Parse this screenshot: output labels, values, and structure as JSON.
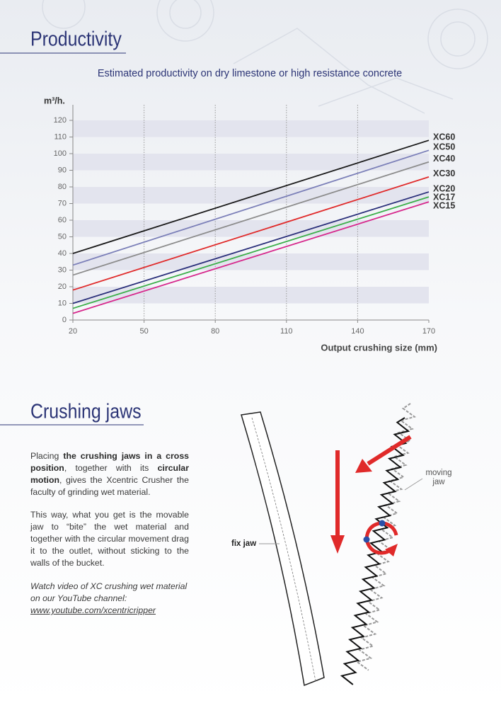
{
  "header": {
    "title": "Productivity"
  },
  "chart_data": {
    "type": "line",
    "subtitle": "Estimated productivity on dry limestone or high resistance concrete",
    "y_label": "m³/h.",
    "x_label": "Output crushing size (mm)",
    "x": [
      20,
      170
    ],
    "xlim": [
      20,
      170
    ],
    "xticks": [
      20,
      50,
      80,
      110,
      140,
      170
    ],
    "ylim": [
      0,
      120
    ],
    "yticks": [
      0,
      10,
      20,
      30,
      40,
      50,
      60,
      70,
      80,
      90,
      100,
      110,
      120
    ],
    "grid": true,
    "series": [
      {
        "name": "XC60",
        "color": "#1a1a1a",
        "values": [
          40,
          108
        ]
      },
      {
        "name": "XC50",
        "color": "#7b7fb8",
        "values": [
          33,
          102
        ]
      },
      {
        "name": "XC40",
        "color": "#8c8c8c",
        "values": [
          27,
          95
        ]
      },
      {
        "name": "XC30",
        "color": "#e02b2b",
        "values": [
          18,
          86
        ]
      },
      {
        "name": "XC20",
        "color": "#2a2f7a",
        "values": [
          10,
          77
        ]
      },
      {
        "name": "XC17",
        "color": "#3cae4a",
        "values": [
          7,
          74
        ]
      },
      {
        "name": "XC15",
        "color": "#d6288c",
        "values": [
          4,
          71
        ]
      }
    ]
  },
  "crushing_jaws": {
    "title": "Crushing jaws",
    "paragraphs": [
      [
        {
          "text": "Placing "
        },
        {
          "text": "the crushing jaws in a cross position",
          "bold": true
        },
        {
          "text": ", together with its "
        },
        {
          "text": "circular motion",
          "bold": true
        },
        {
          "text": ", gives the Xcentric Crusher the faculty of grinding wet material."
        }
      ],
      [
        {
          "text": "This way, what you get is the movable jaw to “bite” the wet material and together with the circular movement drag it to the outlet, without sticking to the walls of the bucket."
        }
      ]
    ],
    "video_note": "Watch video of XC crushing wet material on our YouTube channel:",
    "video_link": "www.youtube.com/xcentricripper"
  },
  "diagram": {
    "fix_jaw": "fix jaw",
    "moving_jaw": [
      "moving",
      "jaw"
    ]
  }
}
